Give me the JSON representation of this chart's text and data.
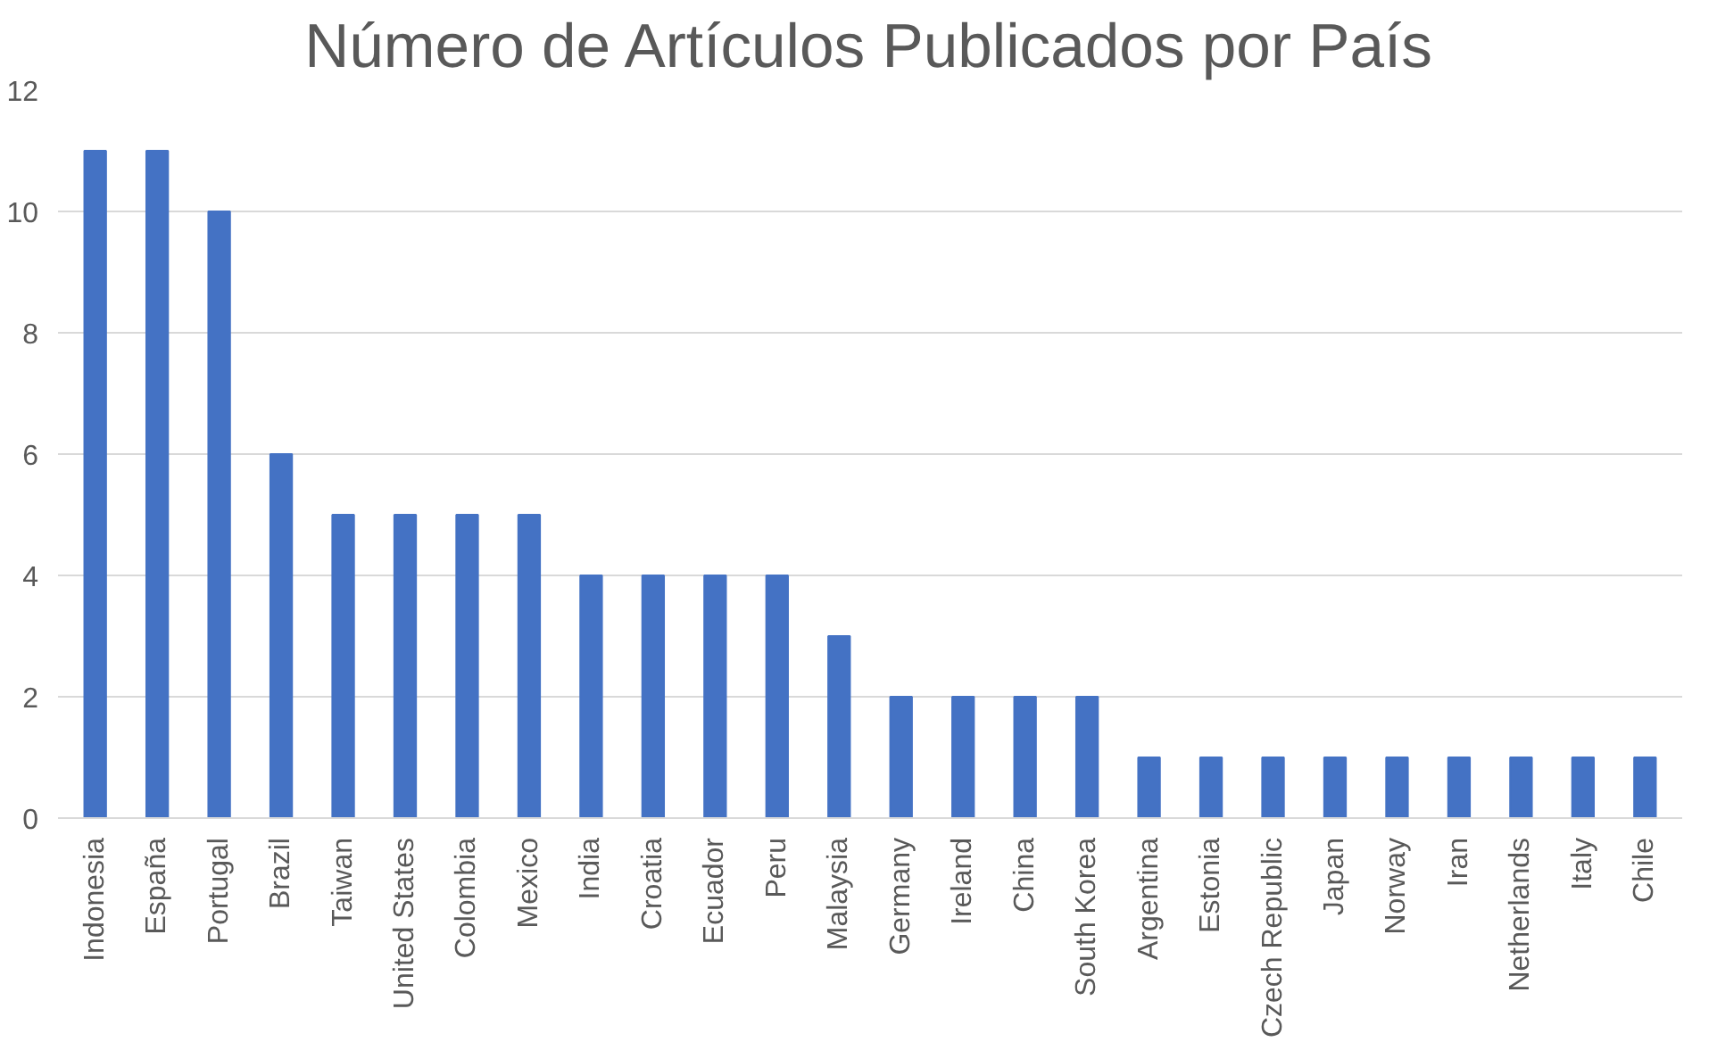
{
  "chart_data": {
    "type": "bar",
    "title": "Número de Artículos Publicados por País",
    "categories": [
      "Indonesia",
      "España",
      "Portugal",
      "Brazil",
      "Taiwan",
      "United States",
      "Colombia",
      "Mexico",
      "India",
      "Croatia",
      "Ecuador",
      "Peru",
      "Malaysia",
      "Germany",
      "Ireland",
      "China",
      "South Korea",
      "Argentina",
      "Estonia",
      "Czech Republic",
      "Japan",
      "Norway",
      "Iran",
      "Netherlands",
      "Italy",
      "Chile"
    ],
    "values": [
      11,
      11,
      10,
      6,
      5,
      5,
      5,
      5,
      4,
      4,
      4,
      4,
      3,
      2,
      2,
      2,
      2,
      1,
      1,
      1,
      1,
      1,
      1,
      1,
      1,
      1
    ],
    "color": "#4472c4",
    "ylim": [
      0,
      12
    ],
    "yticks": [
      0,
      2,
      4,
      6,
      8,
      10,
      12
    ],
    "grid": "y"
  }
}
